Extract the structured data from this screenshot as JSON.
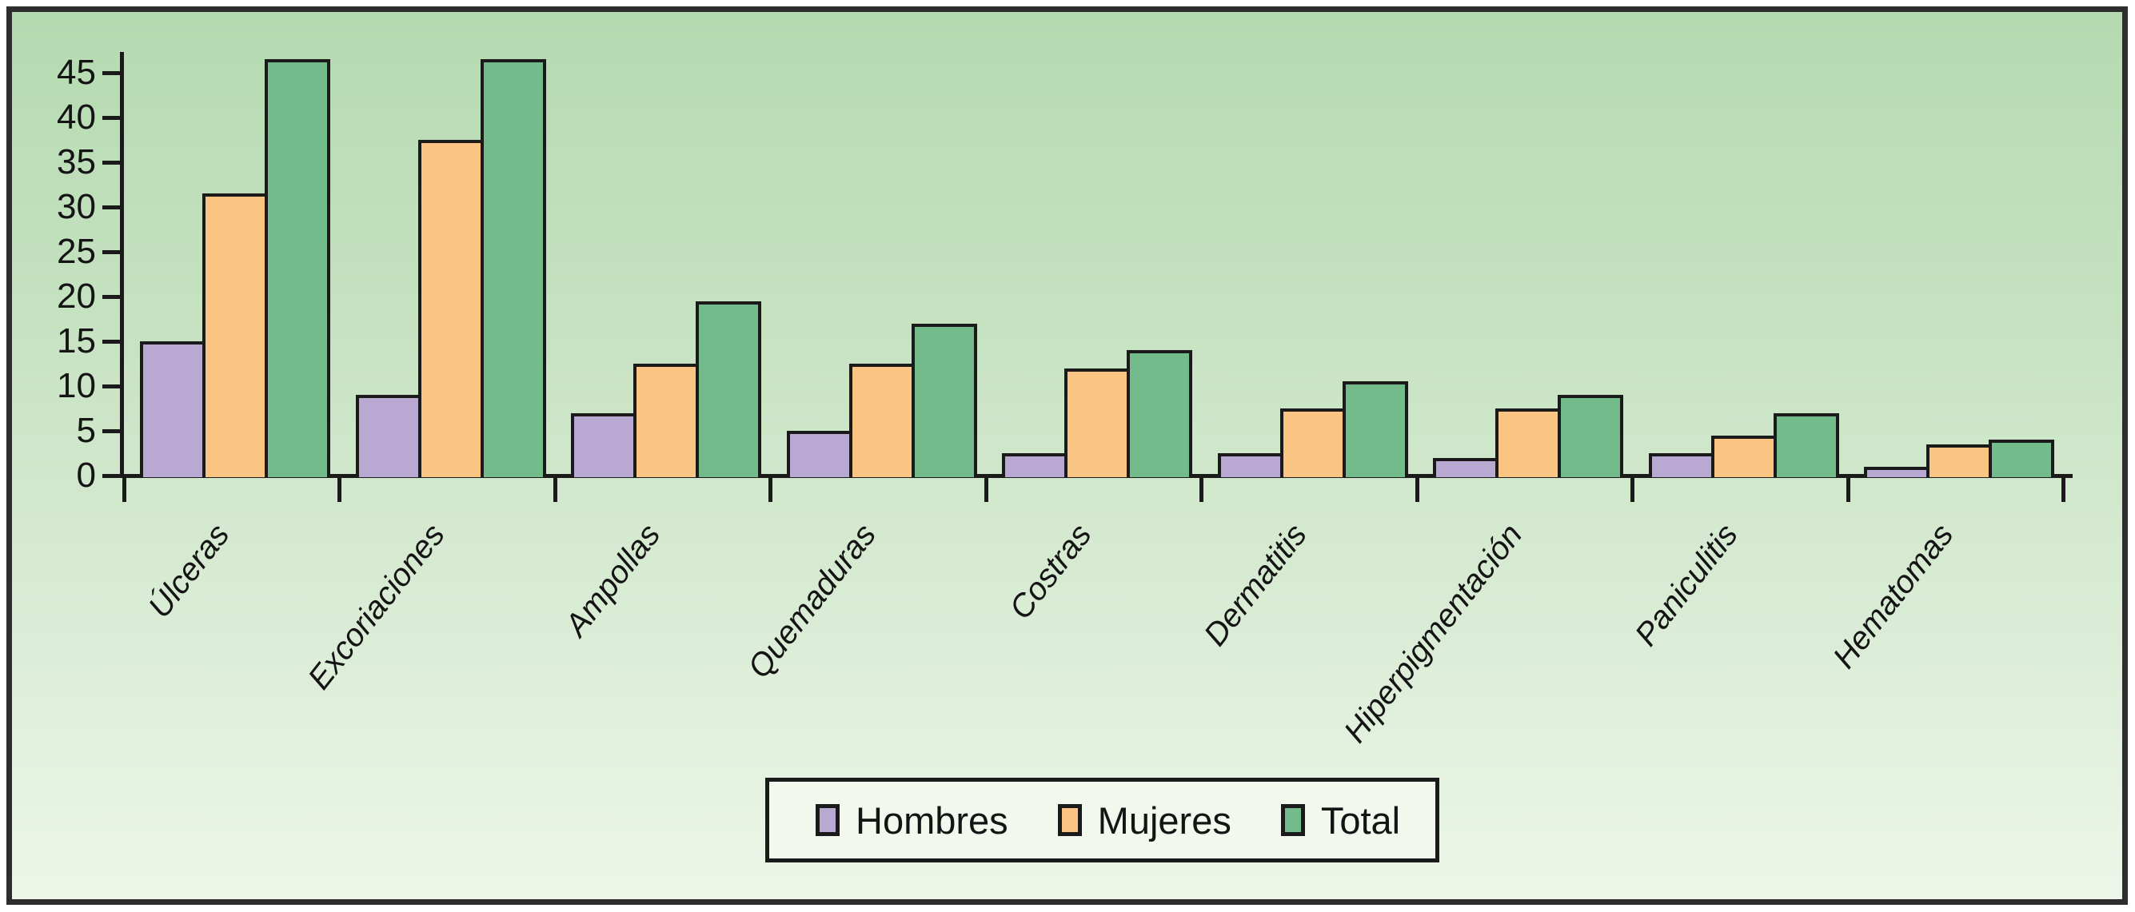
{
  "figure": {
    "border_color": "#2d2d2d",
    "background_top": "#b4dab0",
    "background_bottom": "#edf6e9",
    "axis_color": "#1a1a1a"
  },
  "chart_data": {
    "type": "bar",
    "title": "",
    "xlabel": "",
    "ylabel": "",
    "categories": [
      "Úlceras",
      "Excoriaciones",
      "Ampollas",
      "Quemaduras",
      "Costras",
      "Dermatitis",
      "Hiperpigmentación",
      "Paniculitis",
      "Hematomas"
    ],
    "series": [
      {
        "name": "Hombres",
        "color": "#b9a8d2",
        "values": [
          15,
          9,
          7,
          5,
          2.5,
          2.5,
          2,
          2.5,
          1
        ]
      },
      {
        "name": "Mujeres",
        "color": "#fac482",
        "values": [
          31.5,
          37.5,
          12.5,
          12.5,
          12,
          7.5,
          7.5,
          4.5,
          3.5
        ]
      },
      {
        "name": "Total",
        "color": "#74bb8c",
        "values": [
          46.5,
          46.5,
          19.5,
          17,
          14,
          10.5,
          9,
          7,
          4
        ]
      }
    ],
    "ylim": [
      0,
      45
    ],
    "yticks": [
      0,
      5,
      10,
      15,
      20,
      25,
      30,
      35,
      40,
      45
    ],
    "grid": false,
    "bar_outline": "#1a1a1a",
    "legend_position": "bottom-center"
  },
  "legend": {
    "items": [
      "Hombres",
      "Mujeres",
      "Total"
    ]
  }
}
